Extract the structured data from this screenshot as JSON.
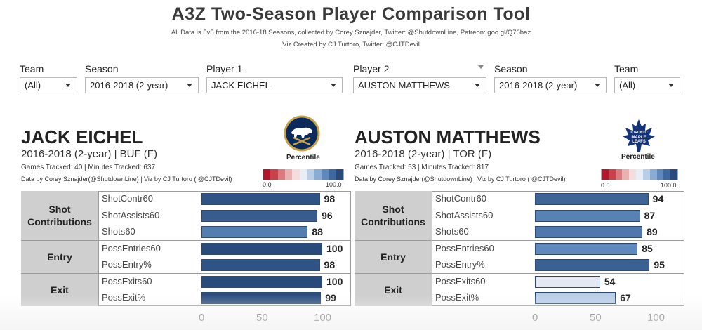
{
  "header": {
    "title": "A3Z Two-Season Player Comparison Tool",
    "subtitle1": "All Data is 5v5 from the 2016-18 Seasons, collected by Corey Sznajder, Twitter: @ShutdownLine, Patreon: goo.gl/Q76baz",
    "subtitle2": "Viz Created by CJ Turtoro, Twitter: @CJTDevil"
  },
  "filters": {
    "team1_label": "Team",
    "team1_value": "(All)",
    "season1_label": "Season",
    "season1_value": "2016-2018 (2-year)",
    "player1_label": "Player 1",
    "player1_value": "JACK EICHEL",
    "player2_label": "Player 2",
    "player2_value": "AUSTON MATTHEWS",
    "season2_label": "Season",
    "season2_value": "2016-2018 (2-year)",
    "team2_label": "Team",
    "team2_value": "(All)"
  },
  "legend": {
    "title": "Percentile",
    "min": "0.0",
    "max": "100.0",
    "colors": [
      "#b2182b",
      "#c9424b",
      "#dd7a7e",
      "#ecb0b1",
      "#f6dddd",
      "#e7eef6",
      "#b9cfe7",
      "#8aabd3",
      "#5f89bd",
      "#3f68a0",
      "#294b7c"
    ]
  },
  "groups": [
    {
      "name": "Shot Contributions",
      "rows": 3
    },
    {
      "name": "Entry",
      "rows": 2
    },
    {
      "name": "Exit",
      "rows": 2
    }
  ],
  "players": [
    {
      "name": "JACK EICHEL",
      "season_line": "2016-2018 (2-year) | BUF (F)",
      "games_line": "Games Tracked: 40 | Minutes Tracked: 637",
      "credit_line": "Data by Corey Sznajder(@ShutdownLine) | Viz by CJ Turtoro ( @CJTDevil)",
      "logo": "sabres-logo"
    },
    {
      "name": "AUSTON MATTHEWS",
      "season_line": "2016-2018 (2-year) | TOR (F)",
      "games_line": "Games Tracked: 53 | Minutes Tracked: 817",
      "credit_line": "Data by Corey Sznajder(@ShutdownLine) | Viz by CJ Turtoro ( @CJTDevil)",
      "logo": "maple-leafs-logo"
    }
  ],
  "chart_data": {
    "type": "bar",
    "orientation": "horizontal",
    "categories": [
      "ShotContr60",
      "ShotAssists60",
      "Shots60",
      "PossEntries60",
      "PossEntry%",
      "PossExits60",
      "PossExit%"
    ],
    "series": [
      {
        "name": "JACK EICHEL",
        "values": [
          98,
          96,
          88,
          100,
          98,
          100,
          99
        ]
      },
      {
        "name": "AUSTON MATTHEWS",
        "values": [
          94,
          87,
          89,
          85,
          95,
          54,
          67
        ]
      }
    ],
    "xlim": [
      0,
      100
    ],
    "xticks": [
      0,
      50,
      100
    ],
    "color_scale": "percentile 0-100, red to blue diverging"
  }
}
